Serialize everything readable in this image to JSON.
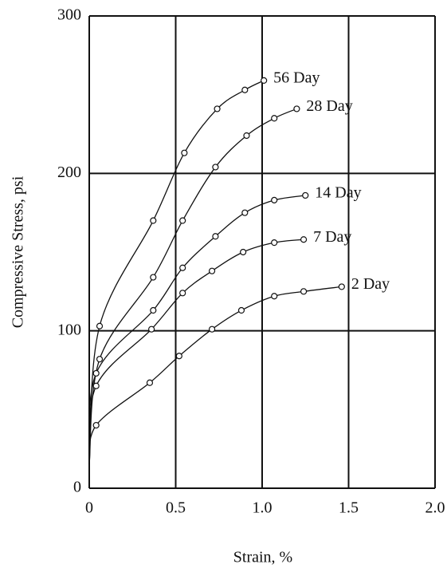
{
  "chart_data": {
    "type": "line",
    "xlabel": "Strain, %",
    "ylabel": "Compressive Stress, psi",
    "xlim": [
      0,
      2
    ],
    "ylim": [
      0,
      300
    ],
    "xticks": [
      0,
      0.5,
      {
        "value": 1,
        "label": "1.0"
      },
      1.5,
      {
        "value": 2,
        "label": "2.0"
      }
    ],
    "yticks": [
      0,
      100,
      200,
      300
    ],
    "grid": true,
    "series": [
      {
        "name": "56 Day",
        "color": "#111111",
        "x": [
          0,
          0.06,
          0.37,
          0.55,
          0.74,
          0.9,
          1.01
        ],
        "values": [
          15,
          103,
          170,
          213,
          241,
          253,
          259
        ]
      },
      {
        "name": "28 Day",
        "color": "#111111",
        "x": [
          0,
          0.06,
          0.37,
          0.54,
          0.73,
          0.91,
          1.07,
          1.2
        ],
        "values": [
          15,
          82,
          134,
          170,
          204,
          224,
          235,
          241
        ]
      },
      {
        "name": "14 Day",
        "color": "#111111",
        "x": [
          0,
          0.04,
          0.37,
          0.54,
          0.73,
          0.9,
          1.07,
          1.25
        ],
        "values": [
          15,
          73,
          113,
          140,
          160,
          175,
          183,
          186
        ]
      },
      {
        "name": "7 Day",
        "color": "#111111",
        "x": [
          0,
          0.04,
          0.36,
          0.54,
          0.71,
          0.89,
          1.07,
          1.24
        ],
        "values": [
          15,
          65,
          101,
          124,
          138,
          150,
          156,
          158
        ]
      },
      {
        "name": "2 Day",
        "color": "#111111",
        "x": [
          0,
          0.04,
          0.35,
          0.52,
          0.71,
          0.88,
          1.07,
          1.24,
          1.46
        ],
        "values": [
          15,
          40,
          67,
          84,
          101,
          113,
          122,
          125,
          128
        ]
      }
    ]
  }
}
